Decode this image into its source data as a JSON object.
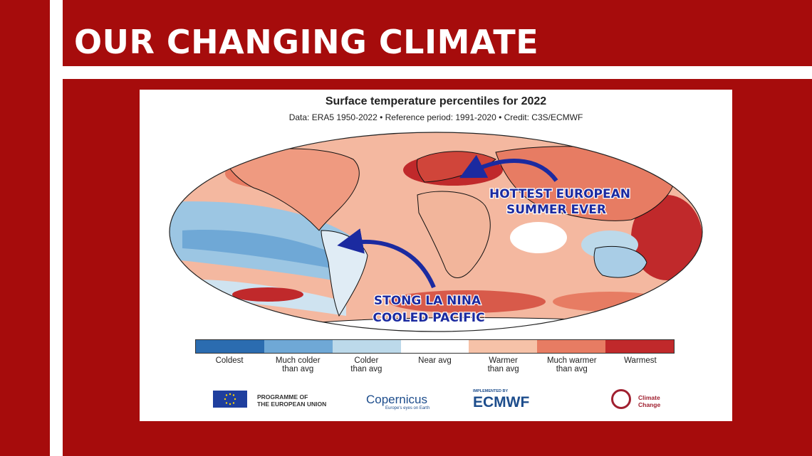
{
  "header": {
    "title": "OUR CHANGING CLIMATE"
  },
  "map": {
    "title": "Surface temperature percentiles for 2022",
    "subtitle": "Data: ERA5 1950-2022 • Reference period: 1991-2020 • Credit: C3S/ECMWF",
    "annotations": {
      "europe_line1": "HOTTEST EUROPEAN",
      "europe_line2": "SUMMER EVER",
      "pacific_line1": "STONG LA NINA",
      "pacific_line2": "COOLED PACIFIC"
    }
  },
  "legend": {
    "items": [
      {
        "color": "#2b6cb0",
        "line1": "Coldest",
        "line2": ""
      },
      {
        "color": "#6fa8d6",
        "line1": "Much colder",
        "line2": "than avg"
      },
      {
        "color": "#bcd9ea",
        "line1": "Colder",
        "line2": "than avg"
      },
      {
        "color": "#ffffff",
        "line1": "Near avg",
        "line2": ""
      },
      {
        "color": "#f6c2a8",
        "line1": "Warmer",
        "line2": "than avg"
      },
      {
        "color": "#e77c63",
        "line1": "Much warmer",
        "line2": "than avg"
      },
      {
        "color": "#c0292b",
        "line1": "Warmest",
        "line2": ""
      }
    ]
  },
  "logos": {
    "eu_line1": "PROGRAMME OF",
    "eu_line2": "THE EUROPEAN UNION",
    "copernicus": "Copernicus",
    "copernicus_sub": "Europe's eyes on Earth",
    "ecmwf_small": "IMPLEMENTED BY",
    "ecmwf": "ECMWF",
    "climate_line1": "Climate",
    "climate_line2": "Change"
  },
  "colors": {
    "background": "#a60c0c",
    "annotation": "#1b2aa0"
  }
}
